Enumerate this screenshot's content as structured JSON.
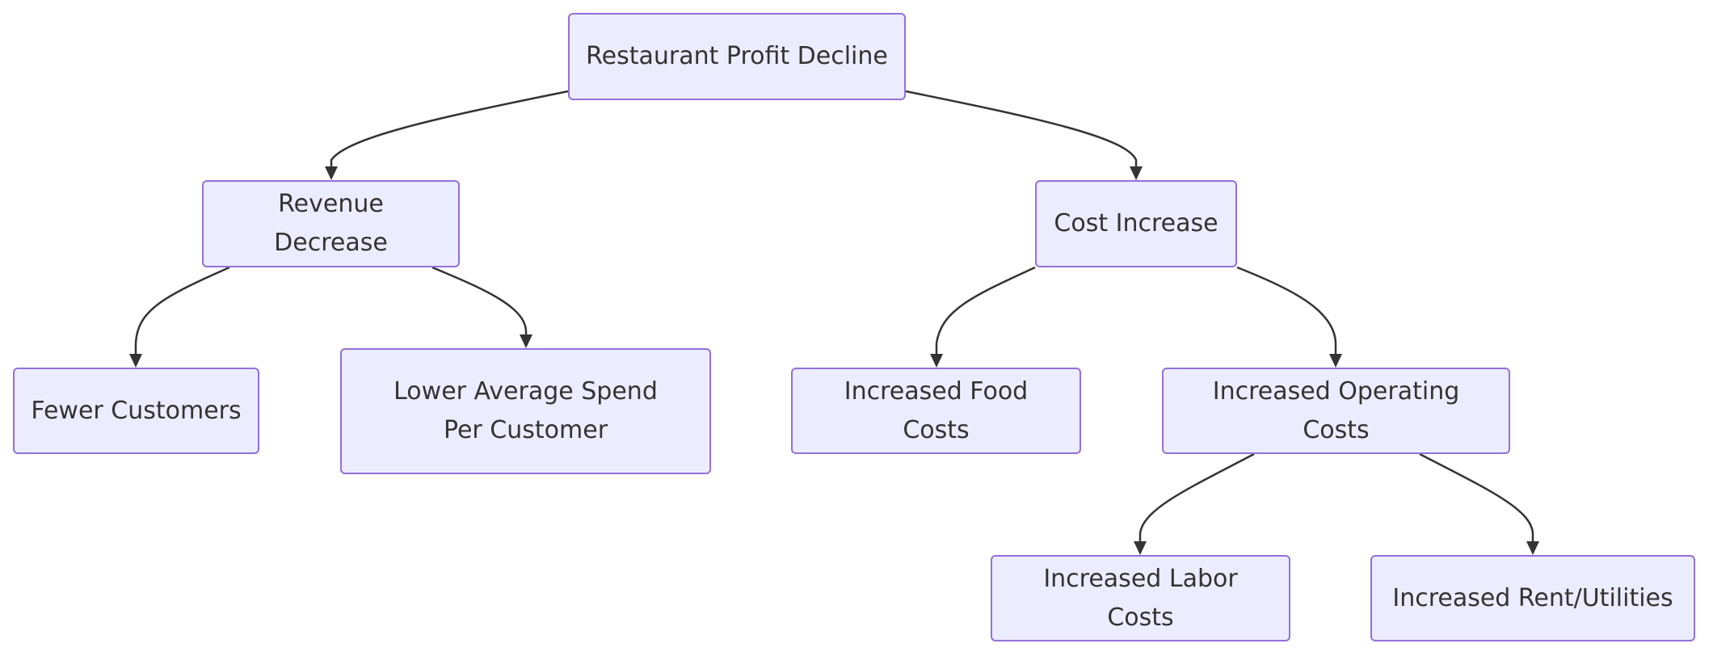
{
  "colors": {
    "node_fill": "#ececff",
    "node_border": "#9370db",
    "text": "#333333",
    "edge": "#333333"
  },
  "nodes": {
    "root": {
      "label": "Restaurant Profit Decline"
    },
    "revenue": {
      "label": "Revenue Decrease"
    },
    "cost": {
      "label": "Cost Increase"
    },
    "fewer_customers": {
      "label": "Fewer Customers"
    },
    "lower_spend": {
      "label": "Lower Average Spend Per Customer"
    },
    "food_costs": {
      "label": "Increased Food Costs"
    },
    "operating_costs": {
      "label": "Increased Operating Costs"
    },
    "labor_costs": {
      "label": "Increased Labor Costs"
    },
    "rent_utilities": {
      "label": "Increased Rent/Utilities"
    }
  },
  "edges": [
    {
      "from": "root",
      "to": "revenue"
    },
    {
      "from": "root",
      "to": "cost"
    },
    {
      "from": "revenue",
      "to": "fewer_customers"
    },
    {
      "from": "revenue",
      "to": "lower_spend"
    },
    {
      "from": "cost",
      "to": "food_costs"
    },
    {
      "from": "cost",
      "to": "operating_costs"
    },
    {
      "from": "operating_costs",
      "to": "labor_costs"
    },
    {
      "from": "operating_costs",
      "to": "rent_utilities"
    }
  ]
}
